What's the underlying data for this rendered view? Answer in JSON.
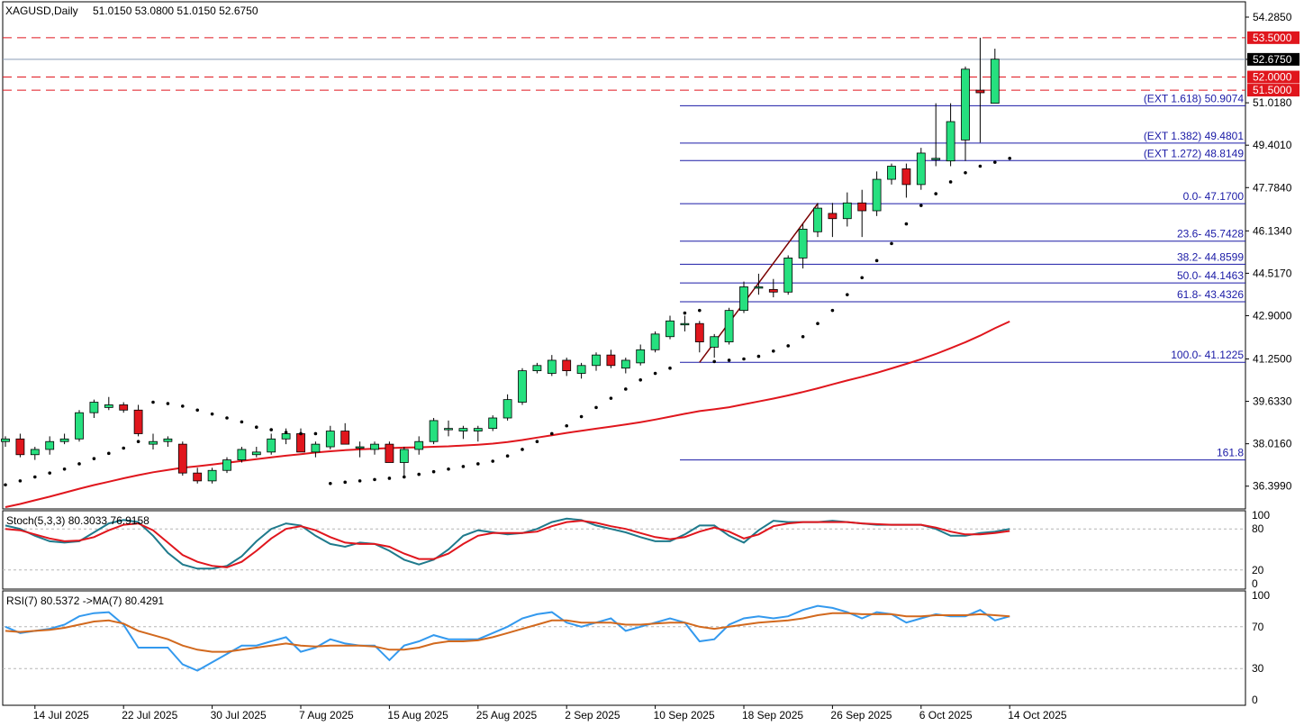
{
  "header": {
    "symbol": "XAGUSD,Daily",
    "ohlc": "51.0150 53.0800 51.0150 52.6750"
  },
  "colors": {
    "bull": "#26e07f",
    "bear": "#e0161d",
    "ma": "#e0161d",
    "sar": "#000000",
    "fib": "#1a1aa6",
    "level": "#e0161d",
    "stoch_main": "#1f7a8c",
    "stoch_signal": "#e0161d",
    "rsi": "#3399ee",
    "rsi_ma": "#d2691e"
  },
  "chart_data": [
    {
      "type": "candlestick",
      "name": "main",
      "ylim": [
        35.6,
        54.8
      ],
      "price_ticks": [
        "54.2850",
        "52.6750",
        "51.0180",
        "49.4010",
        "47.7840",
        "46.1340",
        "44.5170",
        "42.9000",
        "41.2500",
        "39.6330",
        "38.0160",
        "36.3990"
      ],
      "x_ticks": [
        {
          "i": 2,
          "label": "14 Jul 2025"
        },
        {
          "i": 8,
          "label": "22 Jul 2025"
        },
        {
          "i": 14,
          "label": "30 Jul 2025"
        },
        {
          "i": 20,
          "label": "7 Aug 2025"
        },
        {
          "i": 26,
          "label": "15 Aug 2025"
        },
        {
          "i": 32,
          "label": "25 Aug 2025"
        },
        {
          "i": 38,
          "label": "2 Sep 2025"
        },
        {
          "i": 44,
          "label": "10 Sep 2025"
        },
        {
          "i": 50,
          "label": "18 Sep 2025"
        },
        {
          "i": 56,
          "label": "26 Sep 2025"
        },
        {
          "i": 62,
          "label": "6 Oct 2025"
        },
        {
          "i": 68,
          "label": "14 Oct 2025"
        }
      ],
      "candles": [
        [
          38.1,
          38.3,
          37.9,
          38.2
        ],
        [
          38.2,
          38.4,
          37.5,
          37.6
        ],
        [
          37.6,
          37.9,
          37.4,
          37.8
        ],
        [
          37.8,
          38.3,
          37.6,
          38.1
        ],
        [
          38.1,
          38.4,
          38.0,
          38.2
        ],
        [
          38.2,
          39.3,
          38.1,
          39.2
        ],
        [
          39.2,
          39.7,
          39.0,
          39.6
        ],
        [
          39.4,
          39.8,
          39.3,
          39.5
        ],
        [
          39.5,
          39.6,
          39.2,
          39.3
        ],
        [
          39.3,
          39.5,
          38.3,
          38.4
        ],
        [
          38.0,
          38.4,
          37.8,
          38.1
        ],
        [
          38.1,
          38.3,
          37.9,
          38.2
        ],
        [
          38.0,
          38.1,
          36.8,
          36.9
        ],
        [
          36.9,
          37.1,
          36.5,
          36.6
        ],
        [
          36.6,
          37.1,
          36.5,
          37.0
        ],
        [
          37.0,
          37.5,
          36.9,
          37.4
        ],
        [
          37.4,
          37.9,
          37.3,
          37.8
        ],
        [
          37.6,
          37.9,
          37.5,
          37.7
        ],
        [
          37.7,
          38.4,
          37.6,
          38.2
        ],
        [
          38.2,
          38.6,
          38.0,
          38.4
        ],
        [
          38.4,
          38.6,
          37.8,
          37.7
        ],
        [
          37.7,
          38.1,
          37.5,
          38.0
        ],
        [
          37.9,
          38.7,
          37.8,
          38.5
        ],
        [
          38.5,
          38.8,
          38.0,
          38.0
        ],
        [
          37.9,
          38.1,
          37.5,
          37.9
        ],
        [
          37.8,
          38.1,
          37.6,
          38.0
        ],
        [
          38.0,
          38.1,
          37.3,
          37.3
        ],
        [
          37.3,
          37.9,
          36.8,
          37.8
        ],
        [
          37.8,
          38.3,
          37.6,
          38.1
        ],
        [
          38.1,
          39.0,
          38.0,
          38.9
        ],
        [
          38.6,
          38.9,
          38.3,
          38.6
        ],
        [
          38.5,
          38.7,
          38.2,
          38.6
        ],
        [
          38.5,
          38.7,
          38.1,
          38.6
        ],
        [
          38.6,
          39.1,
          38.5,
          39.0
        ],
        [
          39.0,
          39.9,
          38.9,
          39.7
        ],
        [
          39.6,
          40.9,
          39.5,
          40.8
        ],
        [
          40.8,
          41.1,
          40.7,
          41.0
        ],
        [
          40.7,
          41.4,
          40.6,
          41.2
        ],
        [
          41.2,
          41.3,
          40.6,
          40.8
        ],
        [
          40.7,
          41.1,
          40.5,
          41.0
        ],
        [
          41.0,
          41.5,
          40.8,
          41.4
        ],
        [
          41.4,
          41.6,
          40.9,
          41.0
        ],
        [
          40.9,
          41.3,
          40.7,
          41.2
        ],
        [
          41.1,
          41.8,
          41.0,
          41.6
        ],
        [
          41.6,
          42.3,
          41.5,
          42.2
        ],
        [
          42.1,
          42.9,
          42.0,
          42.7
        ],
        [
          42.6,
          42.9,
          42.3,
          42.6
        ],
        [
          42.6,
          42.7,
          41.5,
          41.9
        ],
        [
          41.7,
          42.2,
          41.3,
          42.1
        ],
        [
          41.9,
          43.2,
          41.8,
          43.1
        ],
        [
          43.1,
          44.2,
          43.0,
          44.0
        ],
        [
          44.0,
          44.5,
          43.7,
          44.0
        ],
        [
          43.9,
          44.3,
          43.6,
          43.8
        ],
        [
          43.8,
          45.2,
          43.7,
          45.1
        ],
        [
          45.1,
          46.4,
          44.7,
          46.2
        ],
        [
          46.1,
          47.2,
          45.9,
          47.0
        ],
        [
          46.8,
          47.2,
          45.9,
          46.6
        ],
        [
          46.6,
          47.6,
          46.3,
          47.2
        ],
        [
          47.2,
          47.7,
          45.9,
          46.9
        ],
        [
          46.9,
          48.4,
          46.7,
          48.1
        ],
        [
          48.1,
          48.7,
          47.9,
          48.6
        ],
        [
          48.5,
          48.7,
          47.4,
          47.9
        ],
        [
          47.9,
          49.3,
          47.7,
          49.1
        ],
        [
          48.9,
          51.0,
          48.6,
          48.9
        ],
        [
          48.8,
          51.0,
          48.6,
          50.3
        ],
        [
          49.6,
          52.4,
          48.8,
          52.3
        ],
        [
          51.5,
          53.5,
          49.5,
          51.4
        ],
        [
          51.0,
          53.08,
          51.02,
          52.68
        ]
      ],
      "ma": [
        35.6,
        35.72,
        35.86,
        36.0,
        36.15,
        36.3,
        36.44,
        36.57,
        36.7,
        36.82,
        36.93,
        37.02,
        37.1,
        37.16,
        37.22,
        37.29,
        37.36,
        37.43,
        37.5,
        37.56,
        37.62,
        37.68,
        37.73,
        37.77,
        37.8,
        37.83,
        37.85,
        37.87,
        37.88,
        37.9,
        37.92,
        37.95,
        37.98,
        38.02,
        38.08,
        38.16,
        38.25,
        38.34,
        38.43,
        38.51,
        38.59,
        38.67,
        38.75,
        38.84,
        38.94,
        39.05,
        39.16,
        39.26,
        39.33,
        39.41,
        39.52,
        39.63,
        39.74,
        39.86,
        39.99,
        40.13,
        40.28,
        40.43,
        40.57,
        40.72,
        40.89,
        41.06,
        41.24,
        41.44,
        41.66,
        41.89,
        42.14,
        42.42,
        42.68
      ],
      "sar": [
        [
          0,
          36.45
        ],
        [
          1,
          36.6
        ],
        [
          2,
          36.75
        ],
        [
          3,
          36.9
        ],
        [
          4,
          37.05
        ],
        [
          5,
          37.25
        ],
        [
          6,
          37.45
        ],
        [
          7,
          37.65
        ],
        [
          8,
          37.85
        ],
        [
          9,
          38.1
        ],
        [
          10,
          39.6
        ],
        [
          11,
          39.55
        ],
        [
          12,
          39.45
        ],
        [
          13,
          39.3
        ],
        [
          14,
          39.15
        ],
        [
          15,
          39.0
        ],
        [
          16,
          38.85
        ],
        [
          17,
          38.65
        ],
        [
          18,
          38.55
        ],
        [
          19,
          38.45
        ],
        [
          20,
          38.4
        ],
        [
          21,
          38.4
        ],
        [
          22,
          36.5
        ],
        [
          23,
          36.55
        ],
        [
          24,
          36.6
        ],
        [
          25,
          36.65
        ],
        [
          26,
          36.7
        ],
        [
          27,
          36.75
        ],
        [
          28,
          36.85
        ],
        [
          29,
          36.95
        ],
        [
          30,
          37.05
        ],
        [
          31,
          37.15
        ],
        [
          32,
          37.25
        ],
        [
          33,
          37.35
        ],
        [
          34,
          37.55
        ],
        [
          35,
          37.8
        ],
        [
          36,
          38.1
        ],
        [
          37,
          38.4
        ],
        [
          38,
          38.7
        ],
        [
          39,
          39.05
        ],
        [
          40,
          39.4
        ],
        [
          41,
          39.75
        ],
        [
          42,
          40.1
        ],
        [
          43,
          40.45
        ],
        [
          44,
          40.7
        ],
        [
          45,
          40.9
        ],
        [
          46,
          43.0
        ],
        [
          47,
          43.1
        ],
        [
          48,
          41.15
        ],
        [
          49,
          41.2
        ],
        [
          50,
          41.25
        ],
        [
          51,
          41.35
        ],
        [
          52,
          41.55
        ],
        [
          53,
          41.75
        ],
        [
          54,
          42.1
        ],
        [
          55,
          42.6
        ],
        [
          56,
          43.1
        ],
        [
          57,
          43.7
        ],
        [
          58,
          44.35
        ],
        [
          59,
          45.0
        ],
        [
          60,
          45.65
        ],
        [
          61,
          46.4
        ],
        [
          62,
          47.1
        ],
        [
          63,
          47.55
        ],
        [
          64,
          48.0
        ],
        [
          65,
          48.35
        ],
        [
          66,
          48.6
        ],
        [
          67,
          48.75
        ],
        [
          68,
          48.9
        ]
      ],
      "trend_line": {
        "from": [
          47,
          41.12
        ],
        "to": [
          55,
          47.17
        ]
      },
      "hlines": [
        {
          "price": 53.5,
          "label": "53.5000",
          "kind": "level"
        },
        {
          "price": 52.0,
          "label": "52.0000",
          "kind": "level"
        },
        {
          "price": 51.5,
          "label": "51.5000",
          "kind": "level"
        },
        {
          "price": 52.675,
          "label": "52.6750",
          "kind": "current"
        }
      ],
      "fib_levels": [
        {
          "price": 50.9074,
          "label": "(EXT 1.618)  50.9074"
        },
        {
          "price": 49.4801,
          "label": "(EXT 1.382)  49.4801"
        },
        {
          "price": 48.8149,
          "label": "(EXT 1.272)  48.8149"
        },
        {
          "price": 47.17,
          "label": "0.0- 47.1700"
        },
        {
          "price": 45.7428,
          "label": "23.6- 45.7428"
        },
        {
          "price": 44.8599,
          "label": "38.2- 44.8599"
        },
        {
          "price": 44.1463,
          "label": "50.0- 44.1463"
        },
        {
          "price": 43.4326,
          "label": "61.8- 43.4326"
        },
        {
          "price": 41.1225,
          "label": "100.0- 41.1225"
        },
        {
          "price": 37.4,
          "label": "161.8"
        }
      ]
    },
    {
      "type": "line",
      "name": "stochastic",
      "title": "Stoch(5,3,3) 80.3033 76.9158",
      "ylim": [
        0,
        100
      ],
      "ticks": [
        "100",
        "80",
        "20",
        "0"
      ],
      "levels": [
        80,
        20
      ],
      "series": [
        {
          "values": [
            85,
            80,
            70,
            62,
            60,
            62,
            75,
            88,
            93,
            90,
            70,
            45,
            28,
            22,
            22,
            26,
            40,
            62,
            80,
            88,
            85,
            70,
            58,
            54,
            60,
            58,
            48,
            35,
            28,
            35,
            50,
            70,
            78,
            75,
            72,
            74,
            80,
            90,
            95,
            93,
            85,
            80,
            75,
            68,
            62,
            62,
            72,
            85,
            85,
            70,
            60,
            78,
            92,
            90,
            90,
            90,
            92,
            90,
            88,
            86,
            86,
            86,
            86,
            80,
            70,
            70,
            74,
            76,
            80
          ]
        },
        {
          "values": [
            80,
            78,
            72,
            66,
            62,
            63,
            68,
            78,
            86,
            88,
            78,
            60,
            42,
            32,
            26,
            24,
            32,
            48,
            66,
            80,
            84,
            78,
            68,
            60,
            58,
            58,
            54,
            44,
            36,
            36,
            44,
            58,
            70,
            74,
            74,
            74,
            76,
            84,
            90,
            92,
            89,
            84,
            80,
            74,
            68,
            65,
            68,
            76,
            82,
            76,
            66,
            72,
            84,
            88,
            90,
            90,
            90,
            90,
            88,
            87,
            86,
            86,
            86,
            82,
            76,
            72,
            72,
            74,
            77
          ]
        }
      ]
    },
    {
      "type": "line",
      "name": "rsi",
      "title": "RSI(7) 80.5372  ->MA(7) 80.4291",
      "ylim": [
        0,
        100
      ],
      "ticks": [
        "100",
        "70",
        "30",
        "0"
      ],
      "levels": [
        70,
        30
      ],
      "series": [
        {
          "values": [
            70,
            64,
            66,
            68,
            72,
            80,
            83,
            84,
            72,
            50,
            50,
            50,
            34,
            28,
            36,
            44,
            52,
            52,
            56,
            60,
            46,
            50,
            58,
            54,
            52,
            52,
            38,
            52,
            56,
            62,
            58,
            58,
            58,
            64,
            70,
            78,
            82,
            84,
            74,
            70,
            74,
            78,
            66,
            70,
            74,
            78,
            74,
            56,
            58,
            72,
            78,
            80,
            78,
            80,
            86,
            90,
            88,
            84,
            78,
            84,
            82,
            74,
            78,
            82,
            80,
            80,
            86,
            76,
            80
          ]
        },
        {
          "values": [
            66,
            65,
            66,
            67,
            69,
            72,
            75,
            76,
            73,
            66,
            62,
            58,
            52,
            48,
            46,
            46,
            48,
            50,
            52,
            54,
            52,
            51,
            52,
            52,
            52,
            51,
            48,
            48,
            50,
            54,
            56,
            56,
            57,
            60,
            64,
            68,
            72,
            76,
            76,
            74,
            74,
            74,
            72,
            72,
            73,
            74,
            74,
            70,
            68,
            70,
            72,
            74,
            75,
            76,
            78,
            81,
            83,
            83,
            82,
            82,
            82,
            80,
            80,
            81,
            81,
            81,
            82,
            81,
            80
          ]
        }
      ]
    }
  ]
}
